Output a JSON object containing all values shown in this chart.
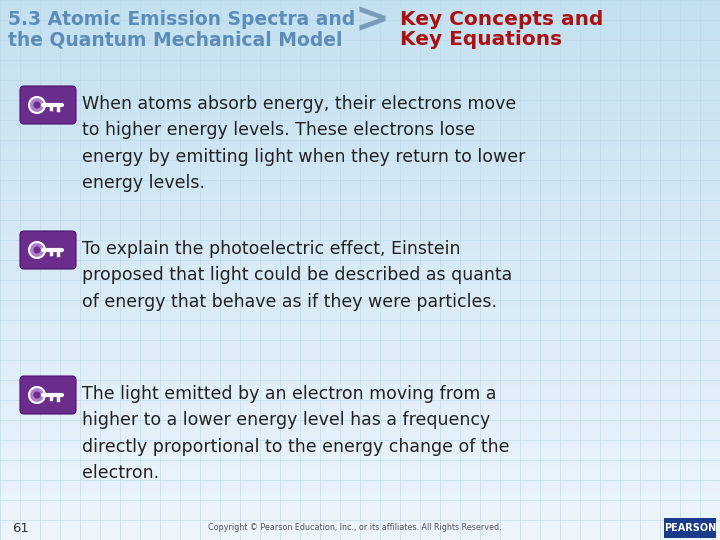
{
  "header_left_text_line1": "5.3 Atomic Emission Spectra and",
  "header_left_text_line2": "the Quantum Mechanical Model",
  "header_right_text_line1": "Key Concepts and",
  "header_right_text_line2": "Key Equations",
  "header_left_color": "#5b8db8",
  "header_right_color": "#aa1111",
  "arrow_char": ">",
  "arrow_color": "#7a9ab8",
  "bullet_bg_color": "#6b2d8b",
  "bullet_texts": [
    "When atoms absorb energy, their electrons move\nto higher energy levels. These electrons lose\nenergy by emitting light when they return to lower\nenergy levels.",
    "To explain the photoelectric effect, Einstein\nproposed that light could be described as quanta\nof energy that behave as if they were particles.",
    "The light emitted by an electron moving from a\nhigher to a lower energy level has a frequency\ndirectly proportional to the energy change of the\nelectron."
  ],
  "body_text_color": "#222222",
  "footer_page_num": "61",
  "footer_copyright": "Copyright © Pearson Education, Inc., or its affiliates. All Rights Reserved.",
  "pearson_box_color": "#1a3a8a",
  "pearson_text": "PEARSON",
  "body_font_size": 12.5,
  "header_font_size": 13.5,
  "grid_color": "#b8d8ea",
  "bg_top_color": "#c5dff0",
  "bg_bottom_color": "#e8f4fb"
}
